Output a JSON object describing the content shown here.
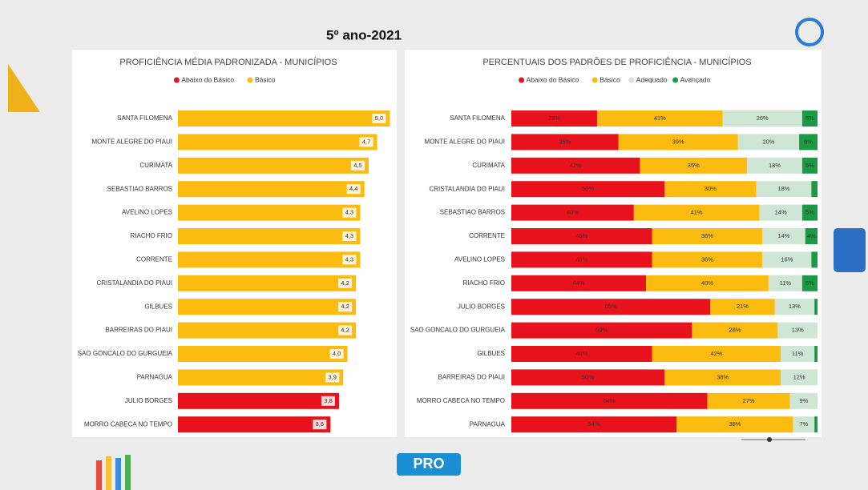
{
  "title": "5º ano-2021",
  "logo": "PRO",
  "chart_data": [
    {
      "type": "bar",
      "title": "PROFICIÊNCIA MÉDIA PADRONIZADA - MUNICÍPIOS",
      "categories": [
        "SANTA FILOMENA",
        "MONTE ALEGRE DO PIAUI",
        "CURIMATA",
        "SEBASTIAO BARROS",
        "AVELINO LOPES",
        "RIACHO FRIO",
        "CORRENTE",
        "CRISTALANDIA DO PIAUI",
        "GILBUES",
        "BARREIRAS DO PIAUI",
        "SAO GONCALO DO GURGUEIA",
        "PARNAGUA",
        "JULIO BORGES",
        "MORRO CABECA NO TEMPO"
      ],
      "xlim": [
        0,
        5.2
      ],
      "series": [
        {
          "name": "Abaixo do Básico",
          "color": "#e8121c",
          "values": [
            null,
            null,
            null,
            null,
            null,
            null,
            null,
            null,
            null,
            null,
            null,
            null,
            3.8,
            3.6
          ],
          "value_labels": [
            null,
            null,
            null,
            null,
            null,
            null,
            null,
            null,
            null,
            null,
            null,
            null,
            "3,8",
            "3,6"
          ]
        },
        {
          "name": "Básico",
          "color": "#fbbb10",
          "values": [
            5.0,
            4.7,
            4.5,
            4.4,
            4.3,
            4.3,
            4.3,
            4.2,
            4.2,
            4.2,
            4.0,
            3.9,
            null,
            null
          ],
          "value_labels": [
            "5,0",
            "4,7",
            "4,5",
            "4,4",
            "4,3",
            "4,3",
            "4,3",
            "4,2",
            "4,2",
            "4,2",
            "4,0",
            "3,9",
            null,
            null
          ]
        }
      ]
    },
    {
      "type": "stacked_bar",
      "title": "PERCENTUAIS DOS PADRÕES DE PROFICIÊNCIA - MUNICÍPIOS",
      "categories": [
        "SANTA FILOMENA",
        "MONTE ALEGRE DO PIAUI",
        "CURIMATA",
        "CRISTALANDIA DO PIAUI",
        "SEBASTIAO BARROS",
        "CORRENTE",
        "AVELINO LOPES",
        "RIACHO FRIO",
        "JULIO BORGES",
        "SAO GONCALO DO GURGUEIA",
        "GILBUES",
        "BARREIRAS DO PIAUI",
        "MORRO CABECA NO TEMPO",
        "PARNAGUA"
      ],
      "xlim": [
        0,
        100
      ],
      "series": [
        {
          "name": "Abaixo do Básico",
          "color": "#e8121c",
          "values": [
            28,
            35,
            42,
            50,
            40,
            46,
            46,
            44,
            65,
            59,
            46,
            50,
            64,
            54
          ],
          "value_labels": [
            "28%",
            "35%",
            "42%",
            "50%",
            "40%",
            "46%",
            "46%",
            "44%",
            "65%",
            "59%",
            "46%",
            "50%",
            "64%",
            "54%"
          ]
        },
        {
          "name": "Básico",
          "color": "#fbbb10",
          "values": [
            41,
            39,
            35,
            30,
            41,
            36,
            36,
            40,
            21,
            28,
            42,
            38,
            27,
            38
          ],
          "value_labels": [
            "41%",
            "39%",
            "35%",
            "30%",
            "41%",
            "36%",
            "36%",
            "40%",
            "21%",
            "28%",
            "42%",
            "38%",
            "27%",
            "38%"
          ]
        },
        {
          "name": "Adequado",
          "color": "#cfe6d4",
          "values": [
            26,
            20,
            18,
            18,
            14,
            14,
            16,
            11,
            13,
            13,
            11,
            12,
            9,
            7
          ],
          "value_labels": [
            "26%",
            "20%",
            "18%",
            "18%",
            "14%",
            "14%",
            "16%",
            "11%",
            "13%",
            "13%",
            "11%",
            "12%",
            "9%",
            "7%"
          ]
        },
        {
          "name": "Avançado",
          "color": "#1a9a45",
          "values": [
            5,
            6,
            5,
            2,
            5,
            4,
            2,
            5,
            1,
            null,
            1,
            null,
            null,
            1
          ],
          "value_labels": [
            "5%",
            "6%",
            "5%",
            null,
            "5%",
            "4%",
            null,
            "5%",
            null,
            null,
            null,
            null,
            null,
            null
          ]
        }
      ]
    }
  ]
}
